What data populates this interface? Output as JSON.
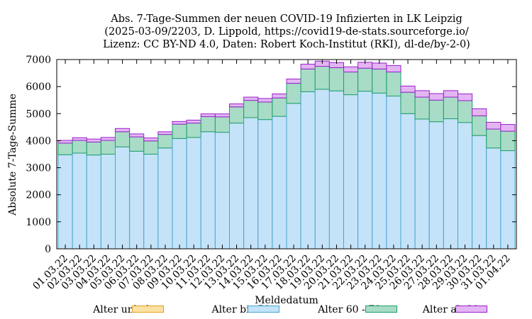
{
  "chart_data": {
    "type": "bar",
    "title": [
      "Abs. 7-Tage-Summen der neuen COVID-19 Infizierten in LK Leipzig",
      "(2025-03-09/2203, D. Lippold, https://covid19-de-stats.sourceforge.io/",
      "Lizenz: CC BY-ND 4.0, Daten: Robert Koch-Institut (RKI), dl-de/by-2-0)"
    ],
    "xlabel": "Meldedatum",
    "ylabel": "Absolute 7-Tage-Summe",
    "ylim": [
      0,
      7000
    ],
    "yticks": [
      0,
      1000,
      2000,
      3000,
      4000,
      5000,
      6000,
      7000
    ],
    "grid": false,
    "stacked": true,
    "legend_position": "bottom",
    "categories": [
      "01.03.22",
      "02.03.22",
      "03.03.22",
      "04.03.22",
      "05.03.22",
      "06.03.22",
      "07.03.22",
      "08.03.22",
      "09.03.22",
      "10.03.22",
      "11.03.22",
      "12.03.22",
      "13.03.22",
      "14.03.22",
      "15.03.22",
      "16.03.22",
      "17.03.22",
      "18.03.22",
      "19.03.22",
      "20.03.22",
      "21.03.22",
      "22.03.22",
      "23.03.22",
      "24.03.22",
      "25.03.22",
      "26.03.22",
      "27.03.22",
      "28.03.22",
      "29.03.22",
      "30.03.22",
      "31.03.22",
      "01.04.22"
    ],
    "series": [
      {
        "name": "Alter unbek.",
        "fill": "#fce1a4",
        "stroke": "#e0a020",
        "values": [
          0,
          0,
          0,
          0,
          0,
          0,
          0,
          0,
          0,
          0,
          0,
          0,
          0,
          0,
          0,
          0,
          0,
          0,
          0,
          0,
          0,
          0,
          0,
          0,
          0,
          0,
          0,
          0,
          0,
          0,
          0,
          0
        ]
      },
      {
        "name": "Alter bis 59",
        "fill": "#c4e3f8",
        "stroke": "#4aa3d0",
        "values": [
          3480,
          3540,
          3470,
          3500,
          3770,
          3610,
          3500,
          3730,
          4080,
          4120,
          4330,
          4310,
          4650,
          4850,
          4780,
          4900,
          5380,
          5810,
          5900,
          5840,
          5700,
          5830,
          5760,
          5650,
          5000,
          4800,
          4700,
          4810,
          4670,
          4190,
          3730,
          3630
        ]
      },
      {
        "name": "Alter 60 - 79",
        "fill": "#a8dcc6",
        "stroke": "#1e9e6a",
        "values": [
          430,
          470,
          480,
          510,
          560,
          530,
          490,
          500,
          530,
          530,
          560,
          570,
          600,
          640,
          650,
          680,
          740,
          840,
          850,
          860,
          840,
          850,
          890,
          890,
          790,
          810,
          800,
          800,
          810,
          730,
          700,
          720
        ]
      },
      {
        "name": "Alter ab 80",
        "fill": "#e3b6f2",
        "stroke": "#9a1fcc",
        "values": [
          100,
          100,
          110,
          110,
          120,
          110,
          110,
          100,
          100,
          110,
          100,
          110,
          110,
          120,
          130,
          150,
          160,
          180,
          190,
          190,
          190,
          220,
          220,
          240,
          230,
          240,
          240,
          240,
          250,
          260,
          250,
          250
        ]
      }
    ]
  }
}
